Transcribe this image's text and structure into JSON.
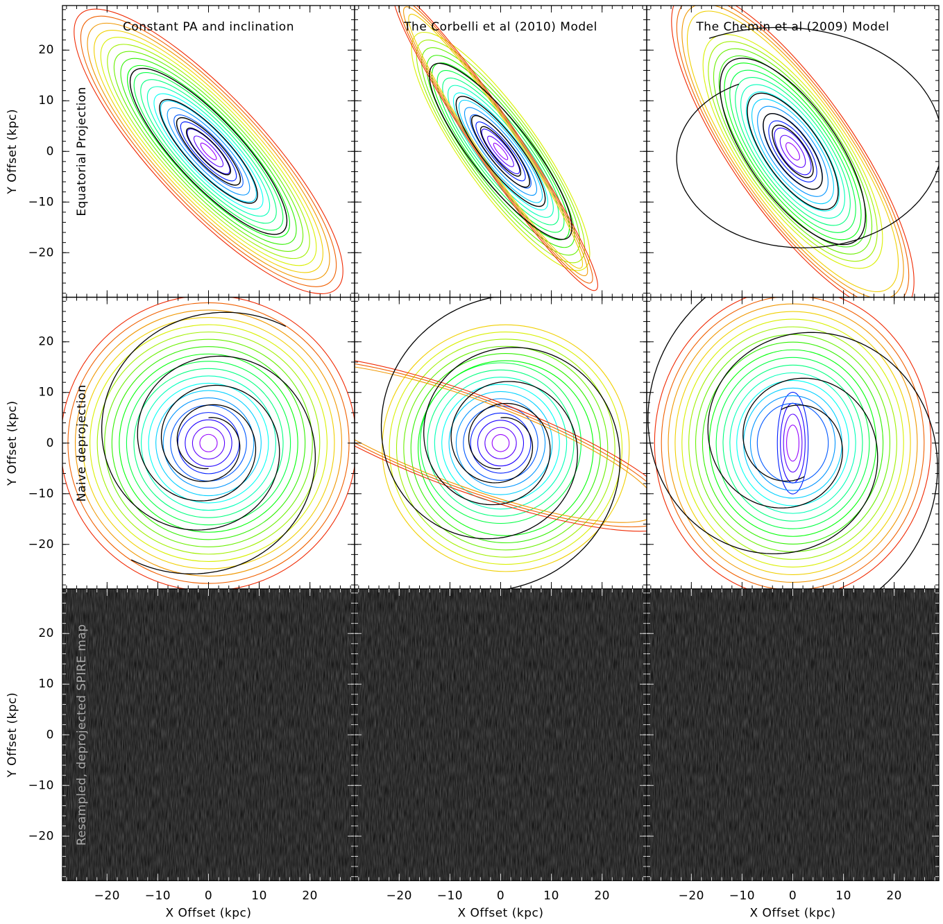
{
  "chart_data": [
    {
      "type": "contour",
      "title": "Constant PA and inclination",
      "annotation": "Equatorial Projection",
      "ylabel": "Y Offset (kpc)",
      "xlim": [
        -28.8,
        28.8
      ],
      "ylim": [
        -28.8,
        28.8
      ],
      "xticks": [
        -20,
        -10,
        0,
        10,
        20
      ],
      "yticks": [
        {
          "value": -20,
          "label": "−20"
        },
        {
          "value": -10,
          "label": "−10"
        },
        0,
        10,
        20
      ]
    },
    {
      "type": "contour",
      "title": "The Corbelli et al (2010) Model",
      "xlim": [
        -28.8,
        28.8
      ],
      "ylim": [
        -28.8,
        28.8
      ],
      "xticks": [
        -20,
        -10,
        0,
        10,
        20
      ],
      "yticks": [
        -20,
        -10,
        0,
        10,
        20
      ]
    },
    {
      "type": "contour",
      "title": "The Chemin et al (2009) Model",
      "xlim": [
        -28.8,
        28.8
      ],
      "ylim": [
        -28.8,
        28.8
      ],
      "xticks": [
        -20,
        -10,
        0,
        10,
        20
      ],
      "yticks": [
        -20,
        -10,
        0,
        10,
        20
      ]
    },
    {
      "type": "contour",
      "annotation": "Naive deprojection",
      "ylabel": "Y Offset (kpc)",
      "xlim": [
        -28.8,
        28.8
      ],
      "ylim": [
        -28.8,
        28.8
      ],
      "xticks": [
        -20,
        -10,
        0,
        10,
        20
      ],
      "yticks": [
        {
          "value": -20,
          "label": "−20"
        },
        {
          "value": -10,
          "label": "−10"
        },
        0,
        10,
        20
      ]
    },
    {
      "type": "contour",
      "xlim": [
        -28.8,
        28.8
      ],
      "ylim": [
        -28.8,
        28.8
      ],
      "xticks": [
        -20,
        -10,
        0,
        10,
        20
      ],
      "yticks": [
        -20,
        -10,
        0,
        10,
        20
      ]
    },
    {
      "type": "contour",
      "xlim": [
        -28.8,
        28.8
      ],
      "ylim": [
        -28.8,
        28.8
      ],
      "xticks": [
        -20,
        -10,
        0,
        10,
        20
      ],
      "yticks": [
        -20,
        -10,
        0,
        10,
        20
      ]
    },
    {
      "type": "image",
      "annotation": "Resampled, deprojected SPIRE map",
      "ylabel": "Y Offset (kpc)",
      "xlabel": "X Offset (kpc)",
      "xlim": [
        -28.8,
        28.8
      ],
      "ylim": [
        -28.8,
        28.8
      ],
      "xticks": [
        {
          "value": -20,
          "label": "−20"
        },
        {
          "value": -10,
          "label": "−10"
        },
        0,
        10,
        20
      ],
      "yticks": [
        {
          "value": -20,
          "label": "−20"
        },
        {
          "value": -10,
          "label": "−10"
        },
        0,
        10,
        20
      ]
    },
    {
      "type": "image",
      "xlabel": "X Offset (kpc)",
      "xlim": [
        -28.8,
        28.8
      ],
      "ylim": [
        -28.8,
        28.8
      ],
      "xticks": [
        {
          "value": -20,
          "label": "−20"
        },
        {
          "value": -10,
          "label": "−10"
        },
        0,
        10,
        20
      ],
      "yticks": [
        -20,
        -10,
        0,
        10,
        20
      ]
    },
    {
      "type": "image",
      "xlabel": "X Offset (kpc)",
      "xlim": [
        -28.8,
        28.8
      ],
      "ylim": [
        -28.8,
        28.8
      ],
      "xticks": [
        {
          "value": -20,
          "label": "−20"
        },
        {
          "value": -10,
          "label": "−10"
        },
        0,
        10,
        20
      ],
      "yticks": [
        -20,
        -10,
        0,
        10,
        20
      ]
    }
  ]
}
